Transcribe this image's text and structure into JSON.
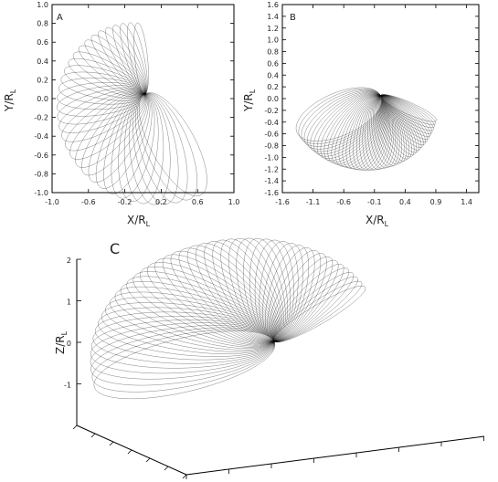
{
  "chart_data": [
    {
      "panel": "A",
      "type": "line",
      "xlabel": "X/R",
      "xlabel_sub": "L",
      "ylabel": "Y/R",
      "ylabel_sub": "L",
      "xlim": [
        -1.0,
        1.0
      ],
      "ylim": [
        -1.0,
        1.0
      ],
      "xticks": [
        "-1.0",
        "-0.6",
        "-0.2",
        "0.2",
        "0.6",
        "1.0"
      ],
      "yticks": [
        "1.0",
        "0.8",
        "0.6",
        "0.4",
        "0.2",
        "0.0",
        "-0.2",
        "-0.4",
        "-0.6",
        "-0.8",
        "-1.0"
      ],
      "family": {
        "count": 34,
        "semi_major": [
          0.62,
          0.38
        ],
        "semi_minor": [
          0.24,
          0.07
        ],
        "tilt_deg_start": 300,
        "tilt_deg_end": 96,
        "pole": [
          0.02,
          0.05
        ]
      }
    },
    {
      "panel": "B",
      "type": "line",
      "xlabel": "X/R",
      "xlabel_sub": "L",
      "ylabel": "Y/R",
      "ylabel_sub": "L",
      "xlim": [
        -1.6,
        1.6
      ],
      "ylim": [
        -1.6,
        1.6
      ],
      "xticks": [
        "-1.6",
        "-1.1",
        "-0.6",
        "-0.1",
        "0.4",
        "0.9",
        "1.4"
      ],
      "yticks": [
        "1.6",
        "1.4",
        "1.2",
        "1.0",
        "0.8",
        "0.6",
        "0.4",
        "0.2",
        "0.0",
        "-0.2",
        "-0.4",
        "-0.6",
        "-0.8",
        "-1.0",
        "-1.2",
        "-1.4",
        "-1.6"
      ],
      "family": {
        "count": 44,
        "semi_major": [
          0.75,
          0.5
        ],
        "semi_minor": [
          0.36,
          0.1
        ],
        "tilt_deg_start": 205,
        "tilt_deg_end": 335,
        "pole": [
          0.0,
          0.05
        ]
      }
    },
    {
      "panel": "C",
      "type": "line",
      "zlabel": "Z/R",
      "zlabel_sub": "L",
      "zticks": [
        "2",
        "1",
        "0",
        "-1"
      ],
      "zlim": [
        -2,
        2
      ],
      "family": {
        "count": 46,
        "semi_major": [
          1.45,
          0.9
        ],
        "semi_minor": [
          0.55,
          0.18
        ],
        "tilt_deg_start": 200,
        "tilt_deg_end": 40,
        "pole": [
          0.0,
          0.0
        ]
      }
    }
  ]
}
